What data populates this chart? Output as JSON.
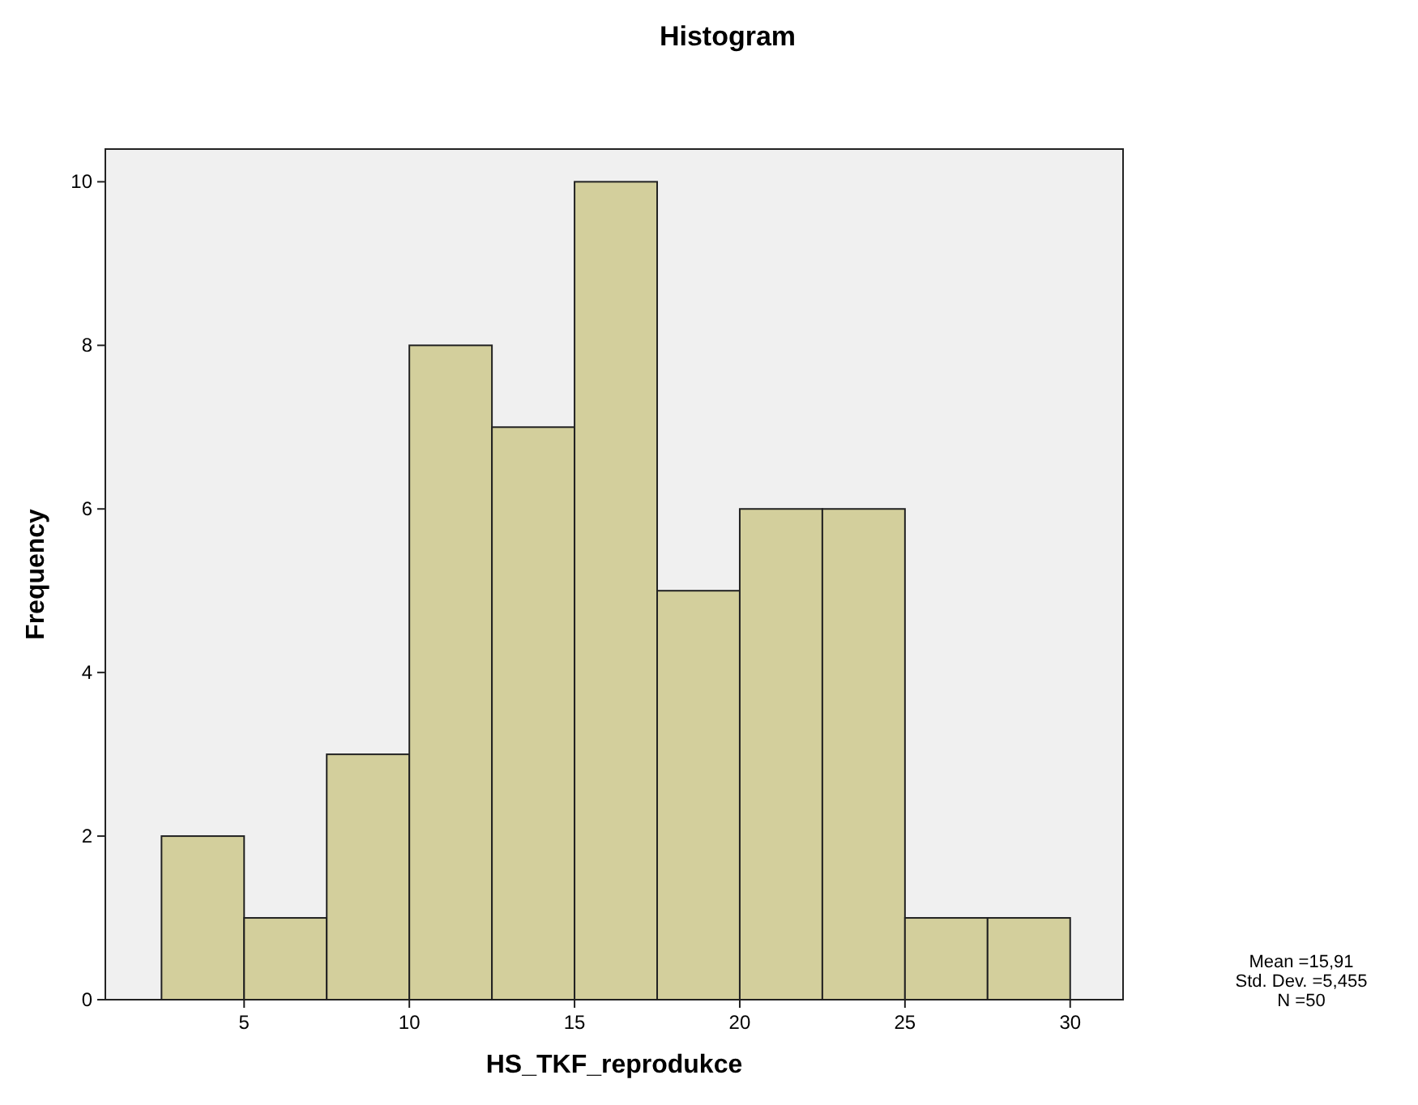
{
  "chart_data": {
    "type": "histogram",
    "title": "Histogram",
    "xlabel": "HS_TKF_reprodukce",
    "ylabel": "Frequency",
    "bins": [
      2.5,
      5,
      7.5,
      10,
      12.5,
      15,
      17.5,
      20,
      22.5,
      25,
      27.5,
      30
    ],
    "values": [
      2,
      1,
      3,
      8,
      7,
      10,
      5,
      6,
      6,
      1,
      1
    ],
    "color": "#d3cf9c",
    "xlim": [
      0.8,
      31.6
    ],
    "xticks": [
      5,
      10,
      15,
      20,
      25,
      30
    ],
    "ylim": [
      0,
      10.4
    ],
    "yticks": [
      0,
      2,
      4,
      6,
      8,
      10
    ],
    "grid": false,
    "annotations": [
      "Mean =15,91",
      "Std. Dev. =5,455",
      "N =50"
    ]
  }
}
